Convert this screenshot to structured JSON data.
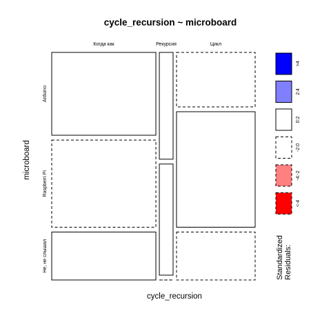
{
  "chart_data": {
    "type": "mosaic",
    "title": "cycle_recursion ~ microboard",
    "xlabel": "cycle_recursion",
    "ylabel": "microboard",
    "x_categories": [
      "Когда как",
      "Рекурсия",
      "Цикл"
    ],
    "y_categories": [
      "Arduino",
      "Raspberri Pi",
      "Не, не слышал"
    ],
    "column_widths": [
      0.53,
      0.07,
      0.4
    ],
    "cells": [
      {
        "col": 0,
        "row": 0,
        "height": 0.38,
        "residual_band": "0:2",
        "dashed": false
      },
      {
        "col": 0,
        "row": 1,
        "height": 0.4,
        "residual_band": "-2:0",
        "dashed": true
      },
      {
        "col": 0,
        "row": 2,
        "height": 0.22,
        "residual_band": "0:2",
        "dashed": false
      },
      {
        "col": 1,
        "row": 0,
        "height": 0.49,
        "residual_band": "0:2",
        "dashed": false
      },
      {
        "col": 1,
        "row": 1,
        "height": 0.51,
        "residual_band": "0:2",
        "dashed": false
      },
      {
        "col": 1,
        "row": 2,
        "height": 0.0,
        "residual_band": "-2:0",
        "dashed": true
      },
      {
        "col": 2,
        "row": 0,
        "height": 0.25,
        "residual_band": "-2:0",
        "dashed": true
      },
      {
        "col": 2,
        "row": 1,
        "height": 0.53,
        "residual_band": "0:2",
        "dashed": false
      },
      {
        "col": 2,
        "row": 2,
        "height": 0.22,
        "residual_band": "-2:0",
        "dashed": true
      }
    ],
    "legend": {
      "title": "Standardized\nResiduals:",
      "placement": "right",
      "entries": [
        {
          "label": ">4",
          "color": "#0000ff",
          "dashed": false
        },
        {
          "label": "2:4",
          "color": "#8080ff",
          "dashed": false
        },
        {
          "label": "0:2",
          "color": "#ffffff",
          "dashed": false
        },
        {
          "label": "-2:0",
          "color": "#ffffff",
          "dashed": true
        },
        {
          "label": "-4:-2",
          "color": "#ff8080",
          "dashed": true
        },
        {
          "label": "<-4",
          "color": "#ff0000",
          "dashed": true
        }
      ]
    }
  }
}
